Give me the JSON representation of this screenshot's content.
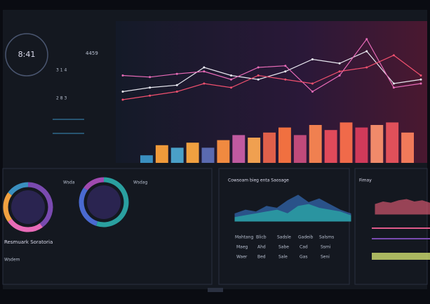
{
  "header": {
    "clock": "8:41",
    "stats": [
      "4459",
      "3 1 4",
      "2 8 3"
    ]
  },
  "panels": {
    "left_title": "Resmuark Soratoria",
    "left_sub": "Wsdem",
    "donut_labels": [
      "Wsda",
      "Wsdag"
    ]
  },
  "table": {
    "headers": [
      "Mahtang",
      "Blicb",
      "Sadsle",
      "Gadeib",
      "Salsms"
    ],
    "rows": [
      [
        "Maeg",
        "Ahd",
        "Sabe",
        "Cad",
        "Ssmi"
      ],
      [
        "Waer",
        "Bed",
        "Sale",
        "Gas",
        "Seni"
      ]
    ]
  },
  "chart_data": [
    {
      "type": "line",
      "ylim": [
        0,
        100
      ],
      "series": [
        {
          "color": "#e8e8f0",
          "values": [
            30,
            35,
            38,
            60,
            50,
            45,
            55,
            70,
            65,
            80,
            40,
            45
          ]
        },
        {
          "color": "#e86bb8",
          "values": [
            50,
            48,
            52,
            55,
            45,
            60,
            62,
            30,
            50,
            95,
            35,
            40
          ]
        },
        {
          "color": "#f0506e",
          "values": [
            20,
            25,
            30,
            40,
            35,
            50,
            45,
            40,
            55,
            60,
            75,
            50
          ]
        }
      ]
    },
    {
      "type": "bar",
      "ylim": [
        0,
        100
      ],
      "values": [
        15,
        35,
        30,
        40,
        30,
        45,
        55,
        50,
        60,
        70,
        55,
        75,
        65,
        80,
        70,
        75,
        80,
        60
      ],
      "colors": [
        "#3a8fc0",
        "#f09a3a",
        "#4aa0c8",
        "#f0a040",
        "#5a6ab0",
        "#f08a40",
        "#c05aa0",
        "#f0a050",
        "#e0604a",
        "#f07040",
        "#c04a7a",
        "#f08050",
        "#e04a5a",
        "#f06a4a",
        "#d03a5a",
        "#f08a6a",
        "#e0505a",
        "#f07a5a"
      ]
    },
    {
      "type": "pie",
      "values": [
        40,
        25,
        20,
        15
      ],
      "colors": [
        "#7a4ab0",
        "#e86bb8",
        "#f0a040",
        "#3a8fc0"
      ]
    },
    {
      "type": "pie",
      "values": [
        55,
        30,
        15
      ],
      "colors": [
        "#2aa0a0",
        "#4a6ad0",
        "#a04ab0"
      ]
    },
    {
      "type": "area",
      "title": "Cowsoam bieg enta Saosage",
      "ylim": [
        0,
        100
      ],
      "series": [
        {
          "color": "#3a7ad0",
          "values": [
            20,
            30,
            25,
            40,
            35,
            55,
            70,
            50,
            60,
            45,
            30,
            20
          ]
        },
        {
          "color": "#2ac0b0",
          "values": [
            10,
            15,
            20,
            25,
            30,
            20,
            40,
            45,
            35,
            30,
            25,
            15
          ]
        }
      ]
    },
    {
      "type": "area",
      "title": "Fimay",
      "ylim": [
        0,
        100
      ],
      "series": [
        {
          "color": "#f0607a",
          "values": [
            40,
            50,
            45,
            55,
            60,
            50,
            55,
            45
          ]
        }
      ]
    }
  ]
}
